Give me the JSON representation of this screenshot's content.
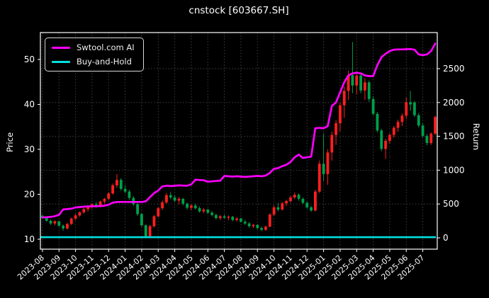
{
  "title": "cnstock [603667.SH]",
  "legend": {
    "items": [
      {
        "label": "Swtool.com AI",
        "color": "#ff00ff"
      },
      {
        "label": "Buy-and-Hold",
        "color": "#00e0e0"
      }
    ]
  },
  "axes": {
    "left_label": "Price",
    "right_label": "Return",
    "price_ticks": [
      10,
      20,
      30,
      40,
      50
    ],
    "return_ticks": [
      0,
      500,
      1000,
      1500,
      2000,
      2500
    ],
    "x_ticks": [
      "2023-08",
      "2023-09",
      "2023-10",
      "2023-11",
      "2023-12",
      "2024-01",
      "2024-02",
      "2024-03",
      "2024-04",
      "2024-05",
      "2024-06",
      "2024-07",
      "2024-08",
      "2024-09",
      "2024-10",
      "2024-11",
      "2024-12",
      "2025-01",
      "2025-02",
      "2025-03",
      "2025-04",
      "2025-05",
      "2025-06",
      "2025-07"
    ],
    "price_range": [
      8.0,
      55.5
    ],
    "return_range": [
      -150,
      3000
    ],
    "grid": "dotted, on return ticks and month ticks"
  },
  "chart_data": {
    "type": "candlestick+line",
    "x_unit": "week, 4 per month, 2023-08 through 2025-07",
    "colors": {
      "up": "#ff1f1f",
      "down": "#00a04a",
      "ai_line": "#ff00ff",
      "buyhold_line": "#00e0e0"
    },
    "candles_ohlc": [
      [
        15.2,
        15.5,
        14.6,
        14.8
      ],
      [
        14.8,
        15.1,
        13.9,
        14.1
      ],
      [
        14.1,
        14.4,
        13.2,
        13.5
      ],
      [
        13.5,
        14.2,
        13.1,
        14.0
      ],
      [
        14.0,
        14.1,
        12.8,
        13.0
      ],
      [
        13.0,
        13.3,
        11.9,
        12.4
      ],
      [
        12.4,
        13.6,
        12.2,
        13.4
      ],
      [
        13.4,
        14.8,
        13.2,
        14.6
      ],
      [
        14.6,
        15.6,
        14.3,
        15.3
      ],
      [
        15.3,
        16.2,
        15.0,
        16.0
      ],
      [
        16.0,
        17.0,
        15.7,
        16.7
      ],
      [
        16.7,
        17.4,
        16.2,
        17.2
      ],
      [
        17.2,
        18.0,
        16.8,
        17.8
      ],
      [
        17.8,
        18.3,
        17.0,
        17.3
      ],
      [
        17.3,
        18.6,
        17.1,
        18.4
      ],
      [
        18.4,
        19.2,
        17.9,
        19.0
      ],
      [
        19.0,
        20.5,
        18.7,
        20.2
      ],
      [
        20.2,
        22.4,
        19.9,
        22.0
      ],
      [
        22.0,
        24.5,
        21.5,
        23.2
      ],
      [
        23.2,
        23.6,
        20.8,
        21.2
      ],
      [
        21.2,
        22.0,
        20.2,
        20.6
      ],
      [
        20.6,
        21.0,
        18.8,
        19.2
      ],
      [
        19.2,
        19.6,
        17.4,
        17.8
      ],
      [
        17.8,
        18.0,
        15.2,
        15.6
      ],
      [
        15.6,
        15.8,
        12.8,
        13.1
      ],
      [
        13.1,
        13.3,
        10.2,
        10.7
      ],
      [
        10.7,
        13.2,
        10.4,
        12.9
      ],
      [
        12.9,
        15.4,
        12.6,
        15.1
      ],
      [
        15.1,
        17.2,
        14.9,
        16.9
      ],
      [
        16.9,
        18.6,
        16.5,
        18.2
      ],
      [
        18.2,
        20.3,
        17.9,
        19.8
      ],
      [
        19.8,
        20.5,
        18.9,
        19.3
      ],
      [
        19.3,
        19.8,
        18.3,
        18.6
      ],
      [
        18.6,
        19.4,
        17.8,
        19.0
      ],
      [
        19.0,
        19.2,
        17.5,
        17.9
      ],
      [
        17.9,
        18.2,
        16.6,
        17.0
      ],
      [
        17.0,
        17.8,
        16.5,
        17.5
      ],
      [
        17.5,
        17.9,
        16.6,
        16.9
      ],
      [
        16.9,
        17.3,
        15.9,
        16.2
      ],
      [
        16.2,
        16.9,
        15.8,
        16.6
      ],
      [
        16.6,
        16.8,
        15.6,
        15.9
      ],
      [
        15.9,
        16.3,
        15.1,
        15.4
      ],
      [
        15.4,
        15.7,
        14.4,
        14.7
      ],
      [
        14.7,
        15.4,
        14.3,
        15.1
      ],
      [
        15.1,
        15.5,
        14.5,
        14.8
      ],
      [
        14.8,
        15.3,
        14.2,
        15.0
      ],
      [
        15.0,
        15.2,
        14.0,
        14.3
      ],
      [
        14.3,
        14.9,
        13.9,
        14.6
      ],
      [
        14.6,
        14.8,
        13.7,
        13.9
      ],
      [
        13.9,
        14.3,
        13.2,
        13.5
      ],
      [
        13.5,
        13.8,
        12.6,
        12.9
      ],
      [
        12.9,
        13.4,
        12.5,
        13.2
      ],
      [
        13.2,
        13.3,
        12.2,
        12.5
      ],
      [
        12.5,
        12.8,
        11.8,
        12.1
      ],
      [
        12.1,
        13.0,
        11.9,
        12.8
      ],
      [
        12.8,
        15.8,
        12.7,
        15.5
      ],
      [
        15.5,
        17.5,
        15.2,
        17.1
      ],
      [
        17.1,
        18.1,
        16.2,
        16.6
      ],
      [
        16.6,
        18.3,
        16.4,
        18.0
      ],
      [
        18.0,
        18.8,
        17.4,
        18.5
      ],
      [
        18.5,
        19.6,
        18.1,
        19.3
      ],
      [
        19.3,
        20.4,
        18.9,
        19.9
      ],
      [
        19.9,
        20.2,
        18.6,
        19.0
      ],
      [
        19.0,
        19.3,
        17.8,
        18.1
      ],
      [
        18.1,
        18.4,
        16.8,
        17.1
      ],
      [
        17.1,
        17.4,
        16.1,
        16.4
      ],
      [
        16.4,
        21.0,
        16.2,
        20.6
      ],
      [
        20.6,
        27.5,
        20.3,
        26.8
      ],
      [
        26.8,
        33.5,
        23.0,
        24.5
      ],
      [
        24.5,
        30.0,
        22.1,
        29.3
      ],
      [
        29.3,
        34.0,
        27.5,
        33.2
      ],
      [
        33.2,
        36.5,
        31.0,
        35.8
      ],
      [
        35.8,
        40.5,
        34.0,
        39.8
      ],
      [
        39.8,
        44.0,
        37.0,
        43.0
      ],
      [
        43.0,
        47.5,
        41.0,
        46.5
      ],
      [
        46.5,
        53.9,
        42.5,
        44.2
      ],
      [
        44.2,
        47.3,
        42.2,
        46.4
      ],
      [
        46.4,
        47.0,
        42.5,
        43.1
      ],
      [
        43.1,
        45.8,
        41.0,
        44.9
      ],
      [
        44.9,
        45.3,
        40.6,
        41.2
      ],
      [
        41.2,
        41.8,
        37.5,
        37.9
      ],
      [
        37.9,
        38.3,
        33.8,
        34.2
      ],
      [
        34.2,
        34.6,
        29.6,
        30.1
      ],
      [
        30.1,
        32.4,
        27.9,
        31.9
      ],
      [
        31.9,
        33.6,
        31.2,
        33.2
      ],
      [
        33.2,
        35.2,
        32.6,
        34.8
      ],
      [
        34.8,
        36.6,
        33.9,
        36.1
      ],
      [
        36.1,
        38.0,
        35.2,
        37.5
      ],
      [
        37.5,
        41.5,
        36.8,
        40.5
      ],
      [
        40.5,
        43.0,
        38.6,
        40.0
      ],
      [
        40.4,
        40.8,
        37.2,
        37.6
      ],
      [
        37.6,
        38.1,
        34.9,
        35.3
      ],
      [
        35.3,
        35.7,
        32.6,
        33.0
      ],
      [
        33.0,
        33.4,
        30.9,
        31.4
      ],
      [
        31.4,
        33.8,
        31.0,
        33.5
      ],
      [
        33.5,
        37.5,
        33.2,
        37.2
      ]
    ],
    "series": [
      {
        "name": "Swtool.com AI",
        "axis": "return",
        "color": "#ff00ff",
        "values": [
          300,
          305,
          310,
          320,
          340,
          420,
          425,
          430,
          450,
          455,
          460,
          465,
          465,
          468,
          470,
          475,
          490,
          520,
          530,
          530,
          530,
          530,
          530,
          530,
          530,
          540,
          600,
          660,
          700,
          760,
          770,
          765,
          770,
          775,
          772,
          770,
          790,
          860,
          855,
          850,
          830,
          835,
          840,
          845,
          915,
          910,
          905,
          910,
          905,
          900,
          905,
          910,
          915,
          910,
          920,
          960,
          1020,
          1030,
          1060,
          1080,
          1120,
          1190,
          1230,
          1180,
          1190,
          1200,
          1620,
          1625,
          1620,
          1650,
          1950,
          2000,
          2150,
          2300,
          2400,
          2430,
          2440,
          2430,
          2400,
          2390,
          2390,
          2550,
          2670,
          2720,
          2760,
          2780,
          2785,
          2785,
          2788,
          2790,
          2780,
          2710,
          2700,
          2710,
          2760,
          2870
        ]
      },
      {
        "name": "Buy-and-Hold",
        "axis": "return",
        "color": "#00e0e0",
        "constant": 10
      }
    ]
  }
}
